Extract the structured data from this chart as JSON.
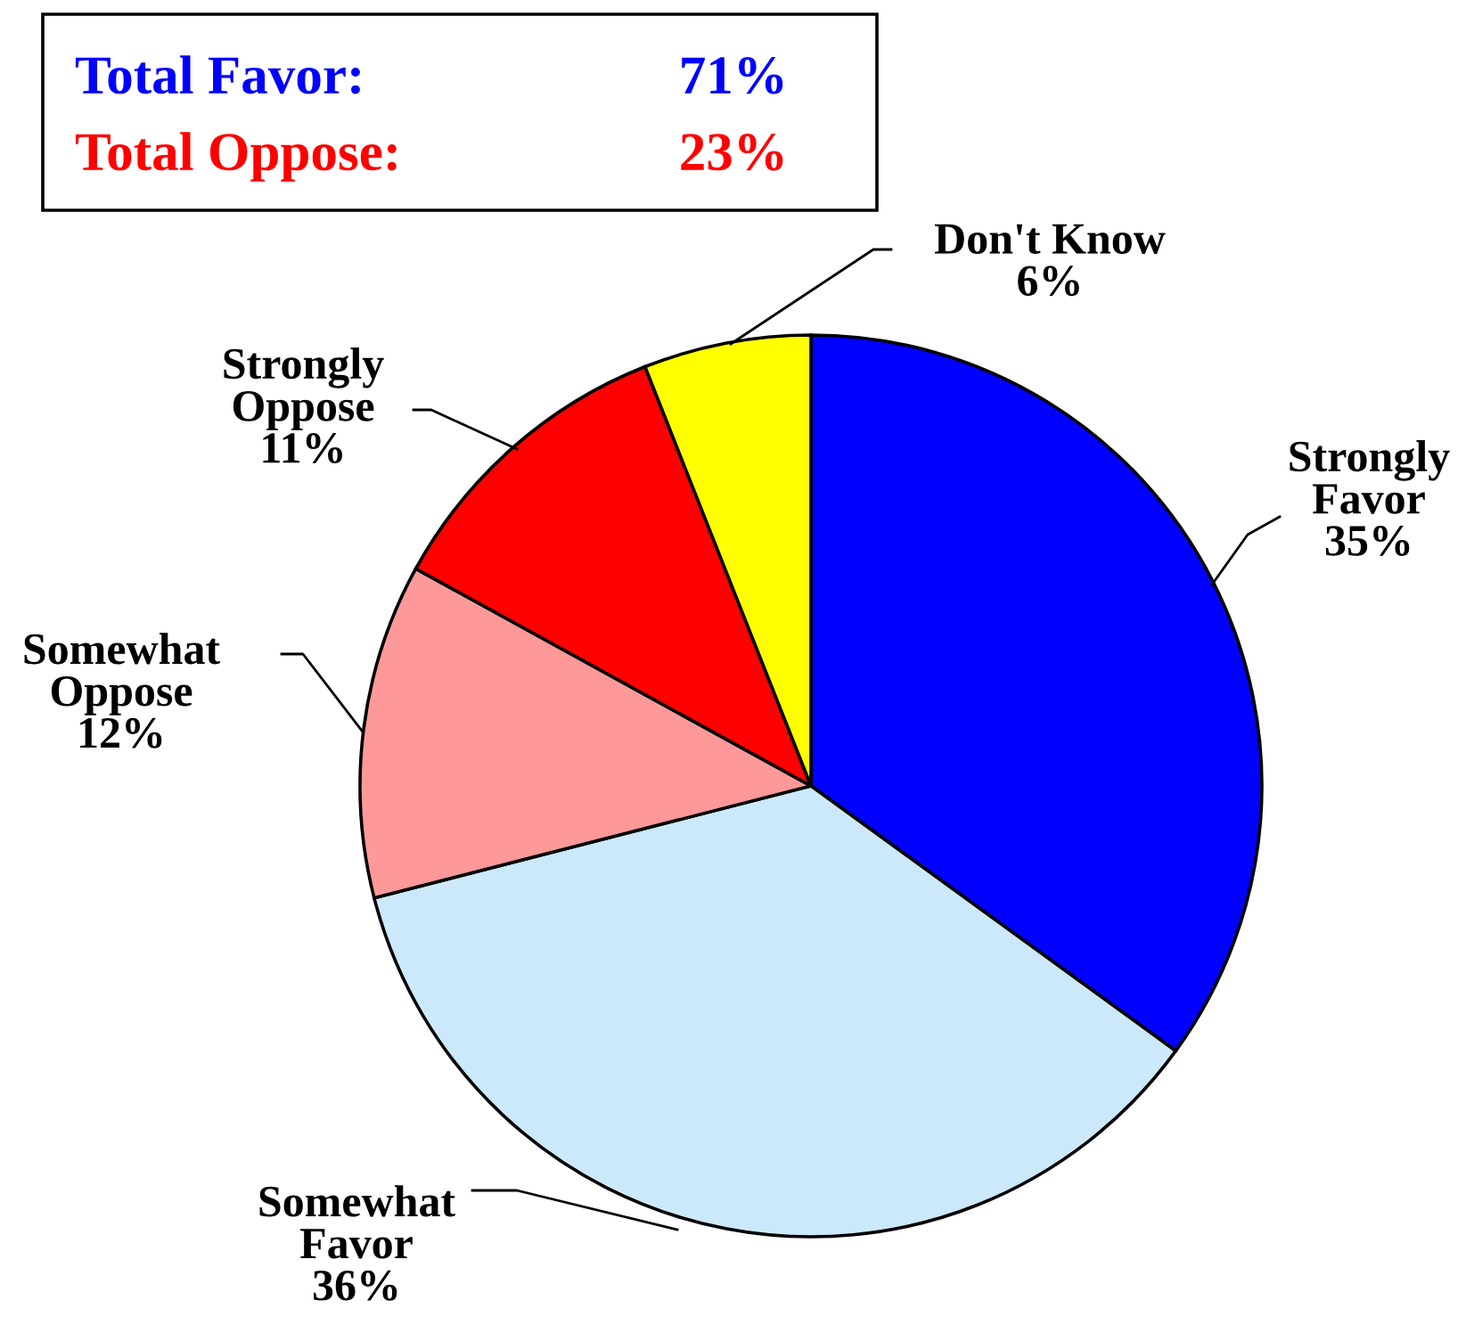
{
  "chart_data": {
    "type": "pie",
    "categories": [
      "Strongly Favor",
      "Somewhat Favor",
      "Somewhat Oppose",
      "Strongly Oppose",
      "Don't Know"
    ],
    "values": [
      35,
      36,
      12,
      11,
      6
    ],
    "value_labels": [
      "35%",
      "36%",
      "12%",
      "11%",
      "6%"
    ],
    "colors": [
      "#0000ff",
      "#cce9fb",
      "#ff9999",
      "#ff0000",
      "#ffff00"
    ],
    "annotations": [
      "Total Favor:",
      "71%",
      "Total Oppose:",
      "23%"
    ]
  }
}
